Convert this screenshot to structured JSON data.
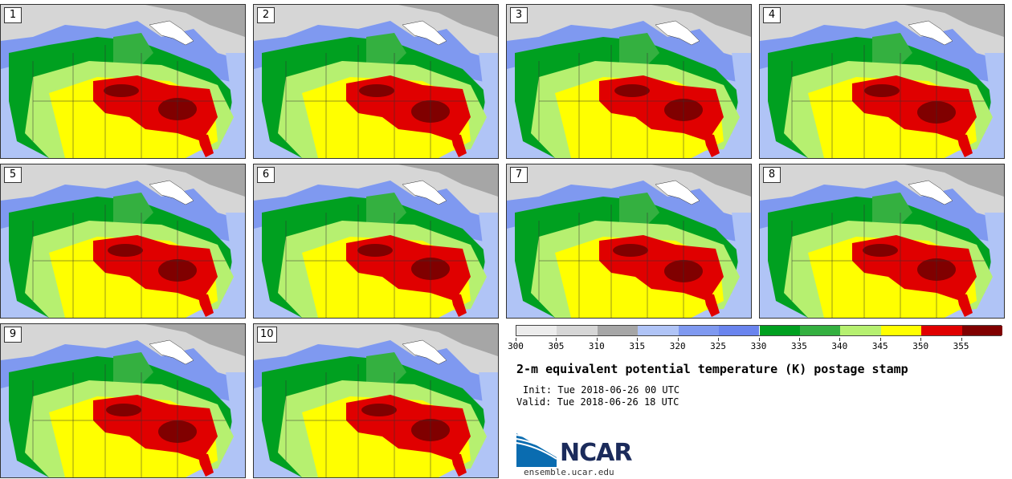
{
  "chart_data": {
    "type": "heatmap",
    "title": "2-m equivalent potential temperature (K) postage stamp",
    "init": "Init: Tue 2018-06-26 00 UTC",
    "valid": "Valid: Tue 2018-06-26 18 UTC",
    "members": [
      "1",
      "2",
      "3",
      "4",
      "5",
      "6",
      "7",
      "8",
      "9",
      "10"
    ],
    "colorbar": {
      "ticks": [
        "300",
        "305",
        "310",
        "315",
        "320",
        "325",
        "330",
        "335",
        "340",
        "345",
        "350",
        "355"
      ],
      "colors": [
        "#ececec",
        "#d6d6d6",
        "#a6a6a6",
        "#b0c4f6",
        "#7f99f0",
        "#6a84ee",
        "#00a020",
        "#34b040",
        "#b6f070",
        "#ffff00",
        "#e00000",
        "#800000"
      ]
    }
  },
  "branding": {
    "logo_text": "NCAR",
    "site": "ensemble.ucar.edu"
  }
}
